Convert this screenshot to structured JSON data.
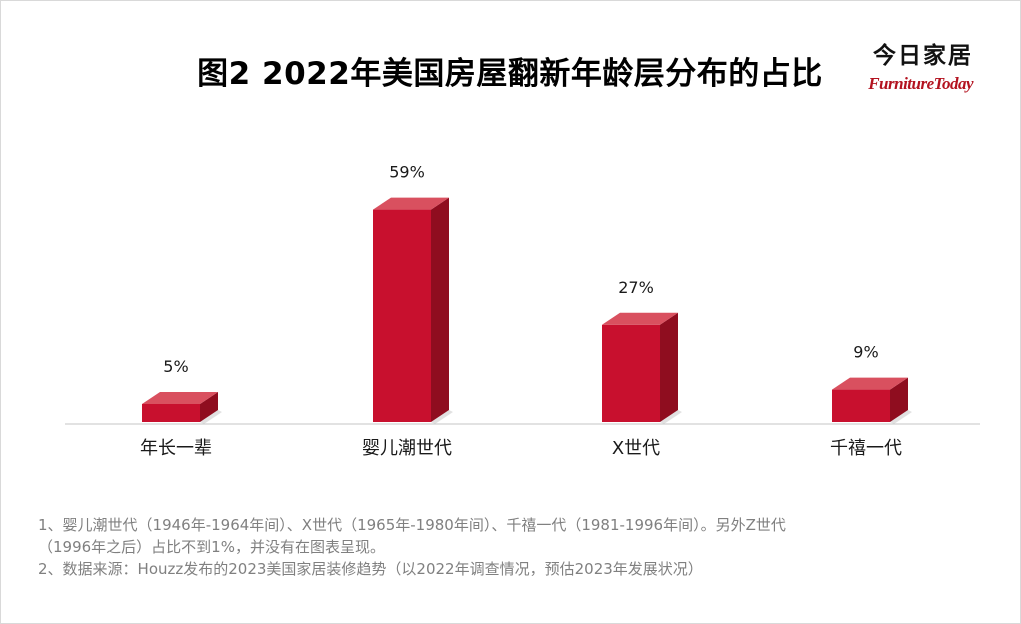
{
  "title": "图2 2022年美国房屋翻新年龄层分布的占比",
  "brand": {
    "cn": "今日家居",
    "en": "FurnitureToday"
  },
  "colors": {
    "bar_front": "#c8102e",
    "bar_top": "#d9505f",
    "bar_side": "#8f0d1f",
    "axis": "#d9d9d9",
    "note_text": "#808080",
    "brand_en": "#b3121f"
  },
  "chart_data": {
    "type": "bar",
    "title": "图2 2022年美国房屋翻新年龄层分布的占比",
    "categories": [
      "年长一辈",
      "婴儿潮世代",
      "X世代",
      "千禧一代"
    ],
    "values": [
      5,
      59,
      27,
      9
    ],
    "value_labels": [
      "5%",
      "59%",
      "27%",
      "9%"
    ],
    "unit": "%",
    "xlabel": "",
    "ylabel": "",
    "ylim": [
      0,
      60
    ],
    "grid": false,
    "legend": "none",
    "style": "3d-column"
  },
  "notes": [
    "1、婴儿潮世代（1946年-1964年间）、X世代（1965年-1980年间）、千禧一代（1981-1996年间）。另外Z世代",
    "（1996年之后）占比不到1%，并没有在图表呈现。",
    "2、数据来源：Houzz发布的2023美国家居装修趋势（以2022年调查情况，预估2023年发展状况）"
  ]
}
